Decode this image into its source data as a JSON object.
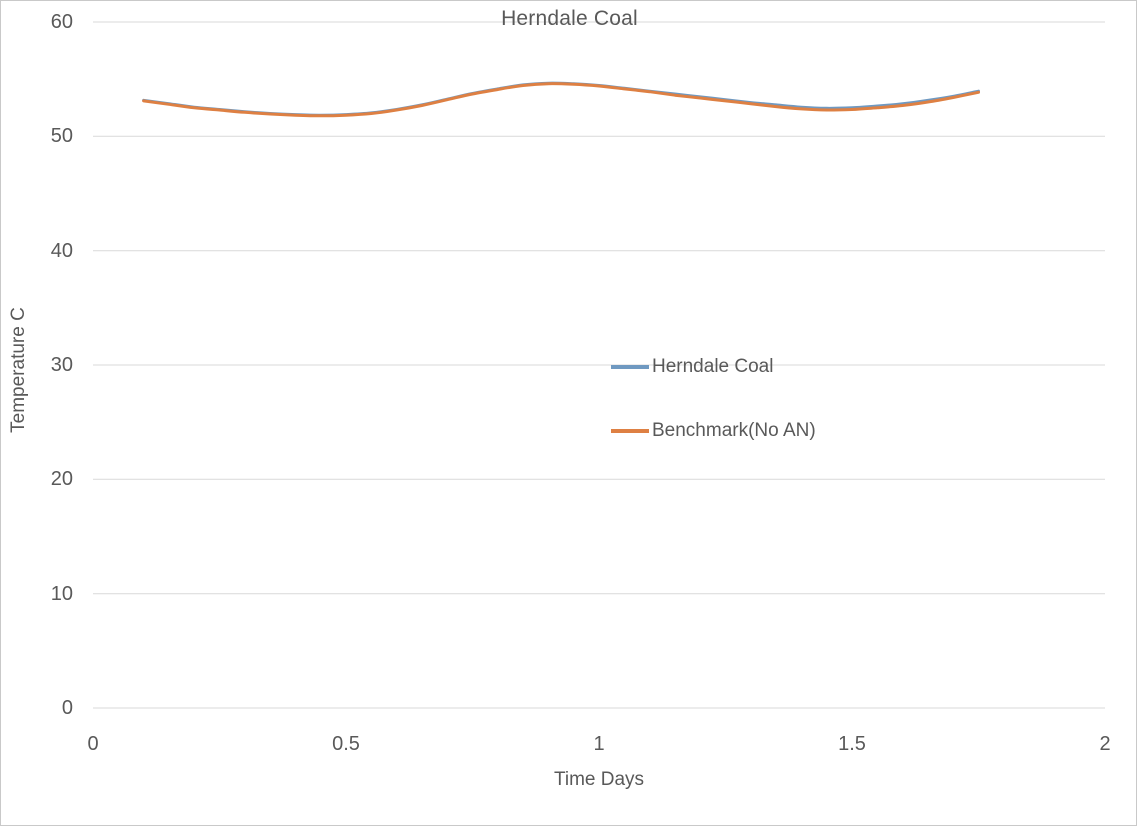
{
  "chart": {
    "title": "Herndale Coal",
    "x_axis_label": "Time Days",
    "y_axis_label": "Temperature C"
  },
  "chart_data": {
    "type": "line",
    "title": "Herndale Coal",
    "xlabel": "Time Days",
    "ylabel": "Temperature C",
    "xlim": [
      0,
      2
    ],
    "ylim": [
      0,
      60
    ],
    "xticks": [
      0,
      0.5,
      1,
      1.5,
      2
    ],
    "xtick_labels": [
      "0",
      "0.5",
      "1",
      "1.5",
      "2"
    ],
    "yticks": [
      0,
      10,
      20,
      30,
      40,
      50,
      60
    ],
    "ytick_labels": [
      "0",
      "10",
      "20",
      "30",
      "40",
      "50",
      "60"
    ],
    "grid": "horizontal-only",
    "grid_color": "#d9d9d9",
    "text_color": "#595959",
    "legend_position": "inside-center-right",
    "x": [
      0.1,
      0.15,
      0.2,
      0.25,
      0.3,
      0.35,
      0.4,
      0.45,
      0.5,
      0.55,
      0.6,
      0.65,
      0.7,
      0.75,
      0.8,
      0.85,
      0.9,
      0.95,
      1.0,
      1.05,
      1.1,
      1.15,
      1.2,
      1.25,
      1.3,
      1.35,
      1.4,
      1.45,
      1.5,
      1.55,
      1.6,
      1.65,
      1.7,
      1.75
    ],
    "series": [
      {
        "name": "Herndale Coal",
        "color": "#6F99C1",
        "values": [
          53.15,
          52.85,
          52.55,
          52.35,
          52.15,
          52.0,
          51.9,
          51.85,
          51.9,
          52.05,
          52.35,
          52.75,
          53.25,
          53.75,
          54.15,
          54.5,
          54.65,
          54.6,
          54.45,
          54.2,
          53.95,
          53.7,
          53.45,
          53.2,
          52.95,
          52.75,
          52.55,
          52.45,
          52.5,
          52.65,
          52.85,
          53.15,
          53.5,
          53.95
        ]
      },
      {
        "name": "Benchmark(No AN)",
        "color": "#DE8043",
        "values": [
          53.1,
          52.8,
          52.5,
          52.3,
          52.1,
          51.95,
          51.85,
          51.8,
          51.85,
          52.0,
          52.3,
          52.7,
          53.2,
          53.7,
          54.1,
          54.45,
          54.6,
          54.55,
          54.4,
          54.15,
          53.9,
          53.6,
          53.35,
          53.1,
          52.85,
          52.6,
          52.4,
          52.3,
          52.35,
          52.5,
          52.7,
          53.0,
          53.4,
          53.85
        ]
      }
    ]
  }
}
